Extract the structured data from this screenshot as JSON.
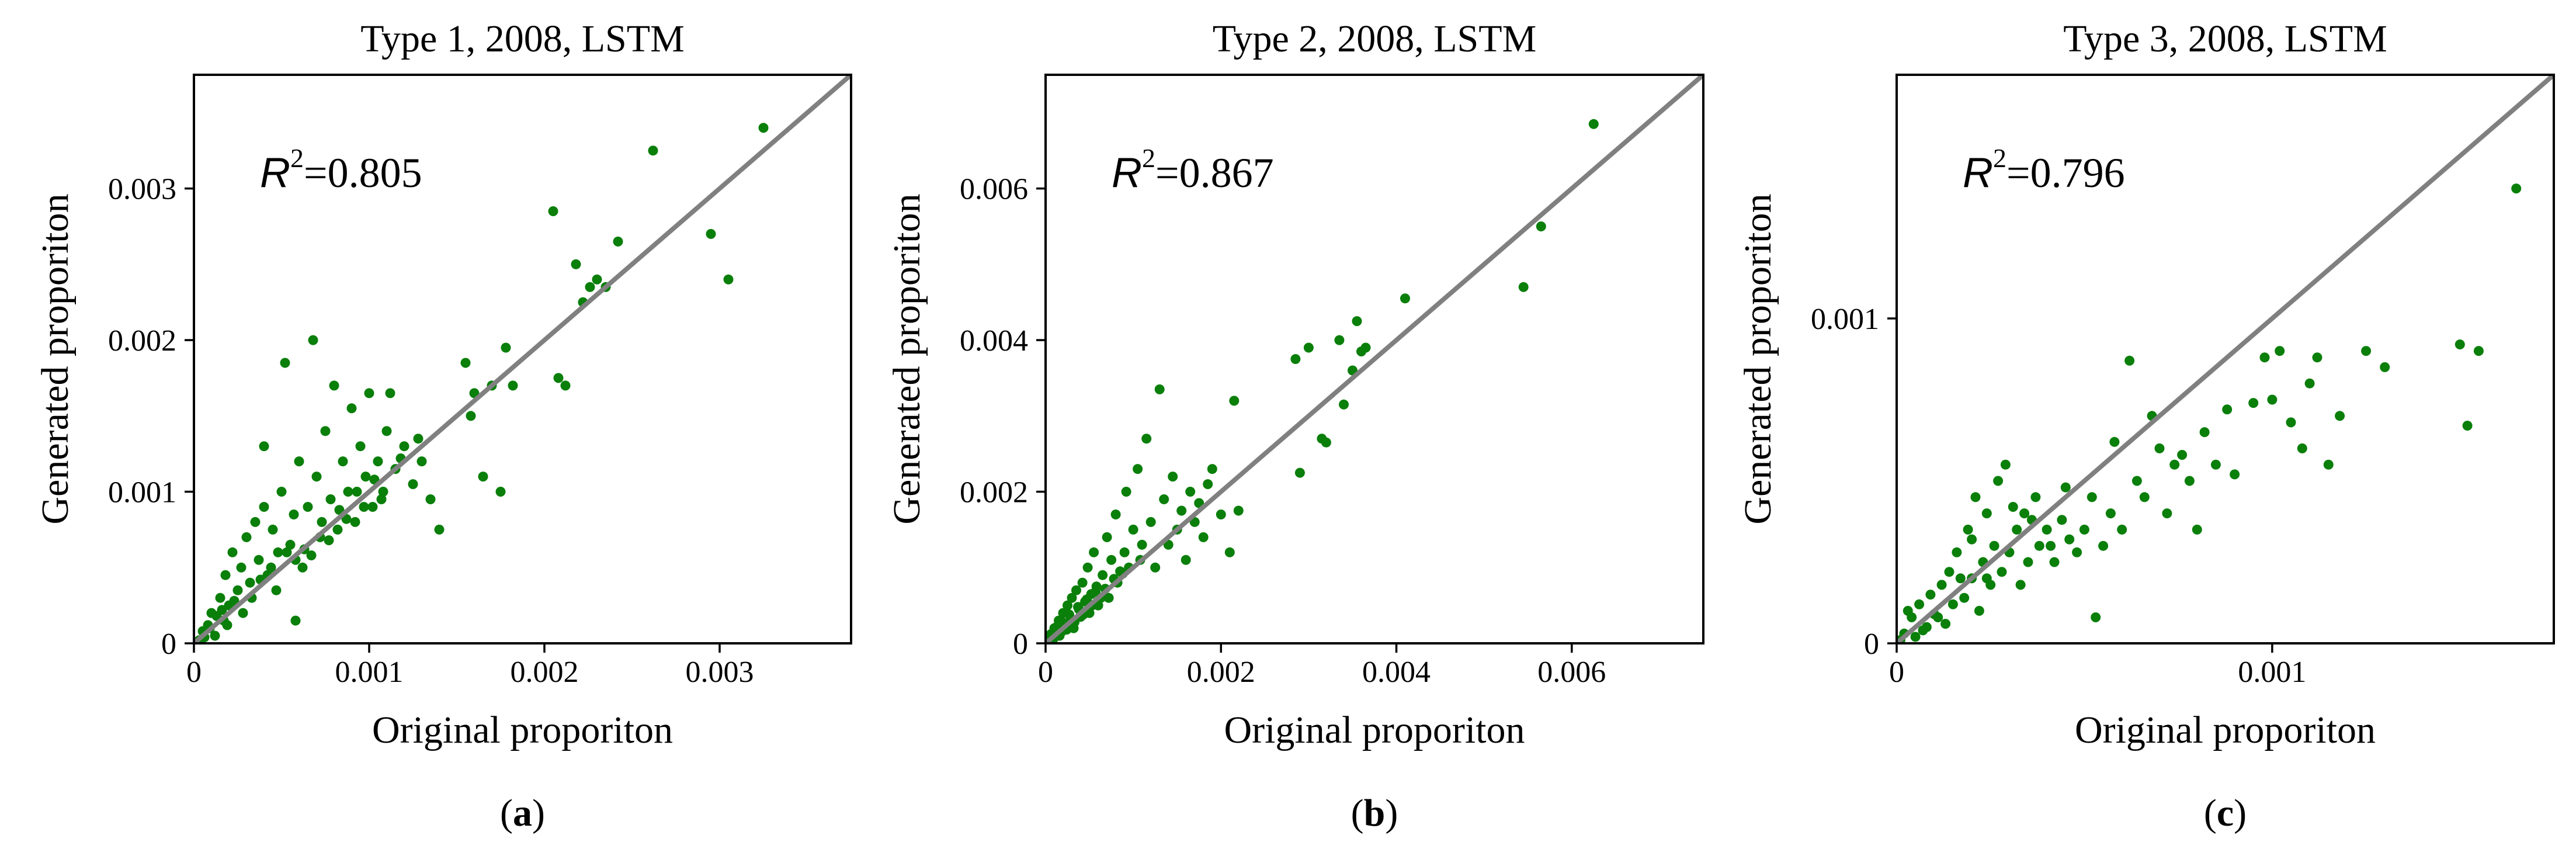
{
  "colors": {
    "point": "#0a7f0a",
    "identity_line": "#808080",
    "frame": "#000000"
  },
  "chart_data": [
    {
      "type": "scatter",
      "panel_label": "a",
      "title": "Type 1, 2008, LSTM",
      "xlabel": "Original proporiton",
      "ylabel": "Generated proporiton",
      "xlim": [
        0,
        0.00375
      ],
      "ylim": [
        0,
        0.00375
      ],
      "xticks": [
        {
          "value": 0,
          "label": "0"
        },
        {
          "value": 0.001,
          "label": "0.001"
        },
        {
          "value": 0.002,
          "label": "0.002"
        },
        {
          "value": 0.003,
          "label": "0.003"
        }
      ],
      "yticks": [
        {
          "value": 0,
          "label": "0"
        },
        {
          "value": 0.001,
          "label": "0.001"
        },
        {
          "value": 0.002,
          "label": "0.002"
        },
        {
          "value": 0.003,
          "label": "0.003"
        }
      ],
      "r2_label": "R",
      "r2_sup": "2",
      "r2_value": "=0.805",
      "identity_line": true,
      "points": [
        [
          5e-05,
          8e-05
        ],
        [
          8e-05,
          0.00012
        ],
        [
          0.0001,
          0.0002
        ],
        [
          0.00012,
          5e-05
        ],
        [
          0.00015,
          0.0003
        ],
        [
          0.00017,
          0.00015
        ],
        [
          0.00018,
          0.00045
        ],
        [
          0.0002,
          0.00025
        ],
        [
          0.00022,
          0.0006
        ],
        [
          0.00025,
          0.00035
        ],
        [
          0.00027,
          0.0005
        ],
        [
          0.0003,
          0.0007
        ],
        [
          0.00032,
          0.0004
        ],
        [
          0.00035,
          0.0008
        ],
        [
          0.00037,
          0.00055
        ],
        [
          0.0004,
          0.0009
        ],
        [
          0.0004,
          0.0013
        ],
        [
          0.00042,
          0.00045
        ],
        [
          0.00045,
          0.00075
        ],
        [
          0.00048,
          0.0006
        ],
        [
          0.0005,
          0.001
        ],
        [
          0.00052,
          0.00185
        ],
        [
          0.00055,
          0.00065
        ],
        [
          0.00057,
          0.00085
        ],
        [
          0.00058,
          0.00015
        ],
        [
          0.0006,
          0.0012
        ],
        [
          0.00062,
          0.0005
        ],
        [
          0.00065,
          0.0009
        ],
        [
          0.00068,
          0.002
        ],
        [
          0.0007,
          0.0011
        ],
        [
          0.00072,
          0.0007
        ],
        [
          0.00075,
          0.0014
        ],
        [
          0.00078,
          0.00095
        ],
        [
          0.0008,
          0.0017
        ],
        [
          0.00082,
          0.00075
        ],
        [
          0.00085,
          0.0012
        ],
        [
          0.00088,
          0.001
        ],
        [
          0.0009,
          0.00155
        ],
        [
          0.00092,
          0.0008
        ],
        [
          0.00095,
          0.0013
        ],
        [
          0.00098,
          0.0011
        ],
        [
          0.001,
          0.00165
        ],
        [
          0.00102,
          0.0009
        ],
        [
          0.00105,
          0.0012
        ],
        [
          0.00108,
          0.001
        ],
        [
          0.0011,
          0.0014
        ],
        [
          0.00112,
          0.00165
        ],
        [
          0.00115,
          0.00115
        ],
        [
          0.0012,
          0.0013
        ],
        [
          0.00125,
          0.00105
        ],
        [
          0.0013,
          0.0012
        ],
        [
          0.00135,
          0.00095
        ],
        [
          0.0014,
          0.00075
        ],
        [
          0.00155,
          0.00185
        ],
        [
          0.00158,
          0.0015
        ],
        [
          0.0016,
          0.00165
        ],
        [
          0.00165,
          0.0011
        ],
        [
          0.0017,
          0.0017
        ],
        [
          0.00175,
          0.001
        ],
        [
          0.00178,
          0.00195
        ],
        [
          0.00182,
          0.0017
        ],
        [
          0.00205,
          0.00285
        ],
        [
          0.00208,
          0.00175
        ],
        [
          0.00212,
          0.0017
        ],
        [
          0.00218,
          0.0025
        ],
        [
          0.00222,
          0.00225
        ],
        [
          0.00226,
          0.00235
        ],
        [
          0.0023,
          0.0024
        ],
        [
          0.00235,
          0.00235
        ],
        [
          0.00242,
          0.00265
        ],
        [
          0.00262,
          0.00325
        ],
        [
          0.00295,
          0.0027
        ],
        [
          0.00305,
          0.0024
        ],
        [
          0.00325,
          0.0034
        ],
        [
          3e-05,
          2e-05
        ],
        [
          6e-05,
          4e-05
        ],
        [
          9e-05,
          0.0001
        ],
        [
          0.00013,
          0.00018
        ],
        [
          0.00016,
          0.00022
        ],
        [
          0.00019,
          0.00012
        ],
        [
          0.00023,
          0.00028
        ],
        [
          0.00028,
          0.0002
        ],
        [
          0.00033,
          0.0003
        ],
        [
          0.00038,
          0.00042
        ],
        [
          0.00044,
          0.0005
        ],
        [
          0.00047,
          0.00035
        ],
        [
          0.00053,
          0.0006
        ],
        [
          0.00058,
          0.00055
        ],
        [
          0.00063,
          0.00062
        ],
        [
          0.00067,
          0.00058
        ],
        [
          0.00073,
          0.0008
        ],
        [
          0.00077,
          0.00068
        ],
        [
          0.00083,
          0.00088
        ],
        [
          0.00087,
          0.00082
        ],
        [
          0.00093,
          0.001
        ],
        [
          0.00097,
          0.0009
        ],
        [
          0.00103,
          0.00108
        ],
        [
          0.00107,
          0.00095
        ],
        [
          0.00118,
          0.00122
        ],
        [
          0.00128,
          0.00135
        ]
      ]
    },
    {
      "type": "scatter",
      "panel_label": "b",
      "title": "Type 2, 2008, LSTM",
      "xlabel": "Original proporiton",
      "ylabel": "Generated proporiton",
      "xlim": [
        0,
        0.0075
      ],
      "ylim": [
        0,
        0.0075
      ],
      "xticks": [
        {
          "value": 0,
          "label": "0"
        },
        {
          "value": 0.002,
          "label": "0.002"
        },
        {
          "value": 0.004,
          "label": "0.004"
        },
        {
          "value": 0.006,
          "label": "0.006"
        }
      ],
      "yticks": [
        {
          "value": 0,
          "label": "0"
        },
        {
          "value": 0.002,
          "label": "0.002"
        },
        {
          "value": 0.004,
          "label": "0.004"
        },
        {
          "value": 0.006,
          "label": "0.006"
        }
      ],
      "r2_label": "R",
      "r2_sup": "2",
      "r2_value": "=0.867",
      "identity_line": true,
      "points": [
        [
          5e-05,
          8e-05
        ],
        [
          8e-05,
          4e-05
        ],
        [
          0.0001,
          0.0002
        ],
        [
          0.00012,
          0.00012
        ],
        [
          0.00015,
          0.0003
        ],
        [
          0.00018,
          0.00015
        ],
        [
          0.0002,
          0.0004
        ],
        [
          0.00022,
          0.00025
        ],
        [
          0.00025,
          0.0005
        ],
        [
          0.00028,
          0.0003
        ],
        [
          0.0003,
          0.0006
        ],
        [
          0.00032,
          0.0002
        ],
        [
          0.00035,
          0.0007
        ],
        [
          0.00038,
          0.00045
        ],
        [
          0.0004,
          0.00035
        ],
        [
          0.00042,
          0.0008
        ],
        [
          0.00045,
          0.00055
        ],
        [
          0.00048,
          0.001
        ],
        [
          0.0005,
          0.0004
        ],
        [
          0.00052,
          0.00065
        ],
        [
          0.00055,
          0.0012
        ],
        [
          0.00058,
          0.00075
        ],
        [
          0.0006,
          0.0005
        ],
        [
          0.00065,
          0.0009
        ],
        [
          0.0007,
          0.0014
        ],
        [
          0.00072,
          0.0006
        ],
        [
          0.00075,
          0.0011
        ],
        [
          0.0008,
          0.0017
        ],
        [
          0.00082,
          0.0008
        ],
        [
          0.00085,
          0.00095
        ],
        [
          0.0009,
          0.0012
        ],
        [
          0.00092,
          0.002
        ],
        [
          0.00095,
          0.001
        ],
        [
          0.001,
          0.0015
        ],
        [
          0.00105,
          0.0023
        ],
        [
          0.00108,
          0.0011
        ],
        [
          0.0011,
          0.0013
        ],
        [
          0.00115,
          0.0027
        ],
        [
          0.0012,
          0.0016
        ],
        [
          0.00125,
          0.001
        ],
        [
          0.0013,
          0.00335
        ],
        [
          0.00135,
          0.0019
        ],
        [
          0.0014,
          0.0013
        ],
        [
          0.00145,
          0.0022
        ],
        [
          0.0015,
          0.0015
        ],
        [
          0.00155,
          0.00175
        ],
        [
          0.0016,
          0.0011
        ],
        [
          0.00165,
          0.002
        ],
        [
          0.0017,
          0.0016
        ],
        [
          0.00175,
          0.00185
        ],
        [
          0.0018,
          0.0014
        ],
        [
          0.00185,
          0.0021
        ],
        [
          0.0019,
          0.0023
        ],
        [
          0.002,
          0.0017
        ],
        [
          0.0021,
          0.0012
        ],
        [
          0.00215,
          0.0032
        ],
        [
          0.0022,
          0.00175
        ],
        [
          0.00285,
          0.00375
        ],
        [
          0.0029,
          0.00225
        ],
        [
          0.003,
          0.0039
        ],
        [
          0.00315,
          0.0027
        ],
        [
          0.0032,
          0.00265
        ],
        [
          0.00335,
          0.004
        ],
        [
          0.0034,
          0.00315
        ],
        [
          0.0035,
          0.0036
        ],
        [
          0.00355,
          0.00425
        ],
        [
          0.0036,
          0.00385
        ],
        [
          0.00365,
          0.0039
        ],
        [
          0.0041,
          0.00455
        ],
        [
          0.00545,
          0.0047
        ],
        [
          0.00565,
          0.0055
        ],
        [
          0.00625,
          0.00685
        ],
        [
          3e-05,
          2e-05
        ],
        [
          6e-05,
          0.00012
        ],
        [
          9e-05,
          6e-05
        ],
        [
          0.00013,
          0.00022
        ],
        [
          0.00016,
          0.0001
        ],
        [
          0.00019,
          0.00028
        ],
        [
          0.00024,
          0.00018
        ],
        [
          0.00027,
          0.00038
        ],
        [
          0.00033,
          0.00028
        ],
        [
          0.00037,
          0.00048
        ],
        [
          0.00043,
          0.00038
        ],
        [
          0.00047,
          0.00058
        ],
        [
          0.00053,
          0.0005
        ],
        [
          0.00057,
          0.00068
        ],
        [
          0.00063,
          0.0006
        ],
        [
          0.00068,
          0.00072
        ],
        [
          0.00078,
          0.00085
        ],
        [
          0.00088,
          0.00092
        ]
      ]
    },
    {
      "type": "scatter",
      "panel_label": "c",
      "title": "Type 3, 2008, LSTM",
      "xlabel": "Original proporiton",
      "ylabel": "Generated proporiton",
      "xlim": [
        0,
        0.00175
      ],
      "ylim": [
        0,
        0.00175
      ],
      "xticks": [
        {
          "value": 0,
          "label": "0"
        },
        {
          "value": 0.001,
          "label": "0.001"
        }
      ],
      "yticks": [
        {
          "value": 0,
          "label": "0"
        },
        {
          "value": 0.001,
          "label": "0.001"
        }
      ],
      "r2_label": "R",
      "r2_sup": "2",
      "r2_value": "=0.796",
      "identity_line": true,
      "points": [
        [
          2e-05,
          3e-05
        ],
        [
          4e-05,
          8e-05
        ],
        [
          5e-05,
          2e-05
        ],
        [
          6e-05,
          0.00012
        ],
        [
          8e-05,
          5e-05
        ],
        [
          9e-05,
          0.00015
        ],
        [
          0.0001,
          9e-05
        ],
        [
          0.00012,
          0.00018
        ],
        [
          0.00013,
          6e-05
        ],
        [
          0.00014,
          0.00022
        ],
        [
          0.00015,
          0.00012
        ],
        [
          0.00016,
          0.00028
        ],
        [
          0.00018,
          0.00014
        ],
        [
          0.00019,
          0.00035
        ],
        [
          0.0002,
          0.0002
        ],
        [
          0.00021,
          0.00045
        ],
        [
          0.00022,
          0.0001
        ],
        [
          0.00023,
          0.00025
        ],
        [
          0.00024,
          0.0004
        ],
        [
          0.00025,
          0.00018
        ],
        [
          0.00026,
          0.0003
        ],
        [
          0.00027,
          0.0005
        ],
        [
          0.00028,
          0.00022
        ],
        [
          0.00029,
          0.00055
        ],
        [
          0.0003,
          0.00028
        ],
        [
          0.00032,
          0.00035
        ],
        [
          0.00033,
          0.00018
        ],
        [
          0.00034,
          0.0004
        ],
        [
          0.00035,
          0.00025
        ],
        [
          0.00036,
          0.00038
        ],
        [
          0.00038,
          0.0003
        ],
        [
          0.0004,
          0.00035
        ],
        [
          0.00042,
          0.00025
        ],
        [
          0.00044,
          0.00038
        ],
        [
          0.00046,
          0.00032
        ],
        [
          0.00048,
          0.00028
        ],
        [
          0.0005,
          0.00035
        ],
        [
          0.00052,
          0.00045
        ],
        [
          0.00053,
          8e-05
        ],
        [
          0.00055,
          0.0003
        ],
        [
          0.00057,
          0.0004
        ],
        [
          0.0006,
          0.00035
        ],
        [
          0.00062,
          0.00087
        ],
        [
          0.00064,
          0.0005
        ],
        [
          0.00066,
          0.00045
        ],
        [
          0.00068,
          0.0007
        ],
        [
          0.0007,
          0.0006
        ],
        [
          0.00072,
          0.0004
        ],
        [
          0.00074,
          0.00055
        ],
        [
          0.00076,
          0.00058
        ],
        [
          0.00078,
          0.0005
        ],
        [
          0.0008,
          0.00035
        ],
        [
          0.00082,
          0.00065
        ],
        [
          0.00085,
          0.00055
        ],
        [
          0.00088,
          0.00072
        ],
        [
          0.0009,
          0.00052
        ],
        [
          0.00095,
          0.00074
        ],
        [
          0.00098,
          0.00088
        ],
        [
          0.001,
          0.00075
        ],
        [
          0.00102,
          0.0009
        ],
        [
          0.00105,
          0.00068
        ],
        [
          0.00108,
          0.0006
        ],
        [
          0.0011,
          0.0008
        ],
        [
          0.00112,
          0.00088
        ],
        [
          0.00115,
          0.00055
        ],
        [
          0.00118,
          0.0007
        ],
        [
          0.00125,
          0.0009
        ],
        [
          0.0013,
          0.00085
        ],
        [
          0.0015,
          0.00092
        ],
        [
          0.00152,
          0.00067
        ],
        [
          0.00155,
          0.0009
        ],
        [
          0.00165,
          0.0014
        ],
        [
          1e-05,
          1e-05
        ],
        [
          3e-05,
          0.0001
        ],
        [
          7e-05,
          4e-05
        ],
        [
          0.00011,
          8e-05
        ],
        [
          0.00017,
          0.0002
        ],
        [
          0.0002,
          0.00032
        ],
        [
          0.00024,
          0.0002
        ],
        [
          0.00031,
          0.00042
        ],
        [
          0.00037,
          0.00045
        ],
        [
          0.00041,
          0.0003
        ],
        [
          0.00045,
          0.00048
        ],
        [
          0.00058,
          0.00062
        ]
      ]
    }
  ]
}
